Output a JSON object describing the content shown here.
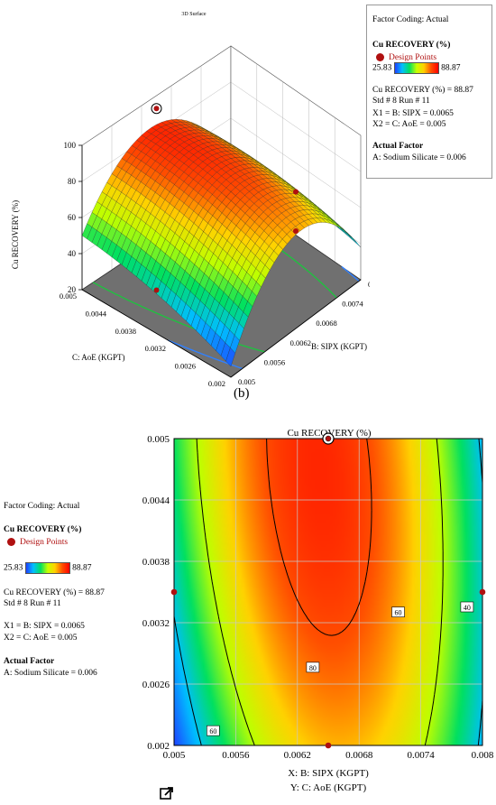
{
  "top_figure": {
    "title": "3D Surface",
    "z_axis_label": "Cu RECOVERY (%)",
    "z_ticks": [
      "20",
      "40",
      "60",
      "80",
      "100"
    ],
    "c_axis_label": "C: AoE (KGPT)",
    "c_ticks": [
      "0.005",
      "0.0044",
      "0.0038",
      "0.0032",
      "0.0026",
      "0.002"
    ],
    "b_axis_label": "B: SIPX (KGPT)",
    "b_ticks": [
      "0.005",
      "0.0056",
      "0.0062",
      "0.0068",
      "0.0074",
      "0.008"
    ],
    "caption": "(b)"
  },
  "legend": {
    "factor_coding": "Factor Coding: Actual",
    "response": "Cu RECOVERY (%)",
    "design_points": "Design Points",
    "range_min": "25.83",
    "range_max": "88.87",
    "response_value": "Cu RECOVERY (%) = 88.87",
    "std_run": "Std # 8 Run # 11",
    "x1": "X1 = B: SIPX = 0.0065",
    "x2": "X2 = C: AoE = 0.005",
    "actual_factor": "Actual Factor",
    "sodium_silicate": "A: Sodium Silicate = 0.006"
  },
  "contour_figure": {
    "title": "Cu RECOVERY (%)",
    "x_label": "X: B: SIPX (KGPT)",
    "y_label": "Y: C: AoE (KGPT)"
  },
  "chart_data": {
    "type": "heatmap",
    "x": [
      0.005,
      0.0056,
      0.0062,
      0.0068,
      0.0074,
      0.008
    ],
    "x_tick_labels": [
      "0.005",
      "0.0056",
      "0.0062",
      "0.0068",
      "0.0074",
      "0.008"
    ],
    "y": [
      0.002,
      0.0026,
      0.0032,
      0.0038,
      0.0044,
      0.005
    ],
    "y_tick_labels": [
      "0.002",
      "0.0026",
      "0.0032",
      "0.0038",
      "0.0044",
      "0.005"
    ],
    "xlim": [
      0.005,
      0.008
    ],
    "ylim": [
      0.002,
      0.005
    ],
    "zlim": [
      20,
      100
    ],
    "color_range": [
      25.83,
      88.87
    ],
    "contour_levels": [
      40,
      60,
      80
    ],
    "contour_labels": [
      {
        "text": "80",
        "x": 0.00635,
        "y": 0.00276
      },
      {
        "text": "60",
        "x": 0.00718,
        "y": 0.0033
      },
      {
        "text": "40",
        "x": 0.00785,
        "y": 0.00335
      },
      {
        "text": "60",
        "x": 0.00538,
        "y": 0.00214
      }
    ],
    "design_points": [
      {
        "x": 0.0065,
        "y": 0.005,
        "recovery": 88.87,
        "highlighted": true
      },
      {
        "x": 0.005,
        "y": 0.0035
      },
      {
        "x": 0.008,
        "y": 0.0035
      },
      {
        "x": 0.0065,
        "y": 0.002
      }
    ],
    "grid": true
  }
}
